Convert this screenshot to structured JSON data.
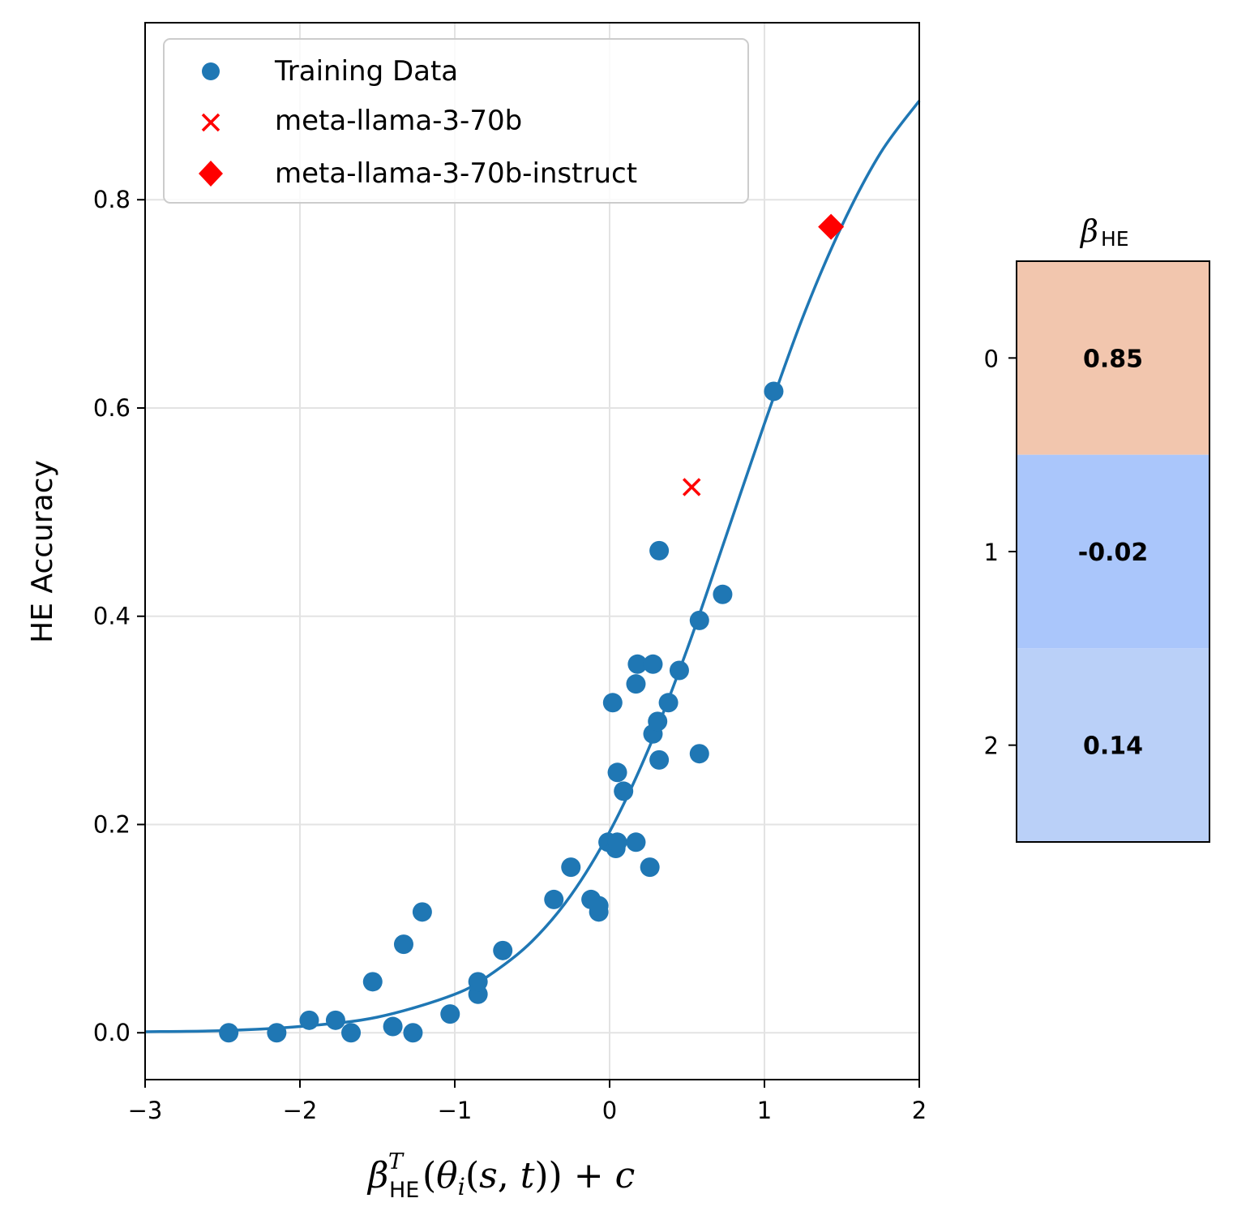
{
  "chart_data": [
    {
      "type": "scatter",
      "xlabel": "β_HE^T(θ_i(s,t)) + c",
      "ylabel": "HE Accuracy",
      "xlim": [
        -3,
        2
      ],
      "ylim": [
        -0.045,
        0.97
      ],
      "xticks": [
        -3,
        -2,
        -1,
        0,
        1,
        2
      ],
      "xtick_labels": [
        "−3",
        "−2",
        "−1",
        "0",
        "1",
        "2"
      ],
      "yticks": [
        0.0,
        0.2,
        0.4,
        0.6,
        0.8
      ],
      "ytick_labels": [
        "0.0",
        "0.2",
        "0.4",
        "0.6",
        "0.8"
      ],
      "grid": true,
      "legend_position": "top-left",
      "series": [
        {
          "name": "Training Data",
          "kind": "scatter",
          "marker": "circle",
          "color": "#1f77b4",
          "points": [
            [
              -2.46,
              0.0
            ],
            [
              -2.15,
              0.0
            ],
            [
              -1.94,
              0.012
            ],
            [
              -1.77,
              0.012
            ],
            [
              -1.67,
              0.0
            ],
            [
              -1.53,
              0.049
            ],
            [
              -1.4,
              0.006
            ],
            [
              -1.33,
              0.085
            ],
            [
              -1.27,
              0.0
            ],
            [
              -1.21,
              0.116
            ],
            [
              -1.03,
              0.018
            ],
            [
              -0.85,
              0.037
            ],
            [
              -0.85,
              0.049
            ],
            [
              -0.69,
              0.079
            ],
            [
              -0.36,
              0.128
            ],
            [
              -0.25,
              0.159
            ],
            [
              -0.12,
              0.128
            ],
            [
              -0.07,
              0.116
            ],
            [
              -0.07,
              0.122
            ],
            [
              -0.01,
              0.183
            ],
            [
              0.02,
              0.317
            ],
            [
              0.04,
              0.177
            ],
            [
              0.05,
              0.183
            ],
            [
              0.05,
              0.25
            ],
            [
              0.09,
              0.232
            ],
            [
              0.17,
              0.183
            ],
            [
              0.17,
              0.335
            ],
            [
              0.18,
              0.354
            ],
            [
              0.26,
              0.159
            ],
            [
              0.28,
              0.287
            ],
            [
              0.28,
              0.354
            ],
            [
              0.31,
              0.299
            ],
            [
              0.32,
              0.262
            ],
            [
              0.32,
              0.463
            ],
            [
              0.38,
              0.317
            ],
            [
              0.45,
              0.348
            ],
            [
              0.58,
              0.268
            ],
            [
              0.58,
              0.396
            ],
            [
              0.73,
              0.421
            ],
            [
              1.06,
              0.616
            ]
          ]
        },
        {
          "name": "meta-llama-3-70b",
          "kind": "scatter",
          "marker": "x",
          "color": "#ff0000",
          "points": [
            [
              0.53,
              0.524
            ]
          ]
        },
        {
          "name": "meta-llama-3-70b-instruct",
          "kind": "scatter",
          "marker": "diamond",
          "color": "#ff0000",
          "points": [
            [
              1.43,
              0.774
            ]
          ]
        },
        {
          "name": "",
          "kind": "line",
          "color": "#1f77b4",
          "points": [
            [
              -3.0,
              0.001
            ],
            [
              -2.5,
              0.002
            ],
            [
              -2.0,
              0.006
            ],
            [
              -1.5,
              0.015
            ],
            [
              -1.0,
              0.037
            ],
            [
              -0.75,
              0.058
            ],
            [
              -0.5,
              0.088
            ],
            [
              -0.25,
              0.132
            ],
            [
              0.0,
              0.193
            ],
            [
              0.25,
              0.272
            ],
            [
              0.5,
              0.368
            ],
            [
              0.75,
              0.476
            ],
            [
              1.0,
              0.585
            ],
            [
              1.25,
              0.688
            ],
            [
              1.5,
              0.775
            ],
            [
              1.75,
              0.845
            ],
            [
              2.0,
              0.895
            ]
          ]
        }
      ]
    },
    {
      "type": "heatmap",
      "title": "β_HE",
      "row_labels": [
        "0",
        "1",
        "2"
      ],
      "values": [
        0.85,
        -0.02,
        0.14
      ],
      "value_labels": [
        "0.85",
        "-0.02",
        "0.14"
      ],
      "colors": [
        "#f2c6ae",
        "#aac6fb",
        "#bad0f8"
      ]
    }
  ]
}
